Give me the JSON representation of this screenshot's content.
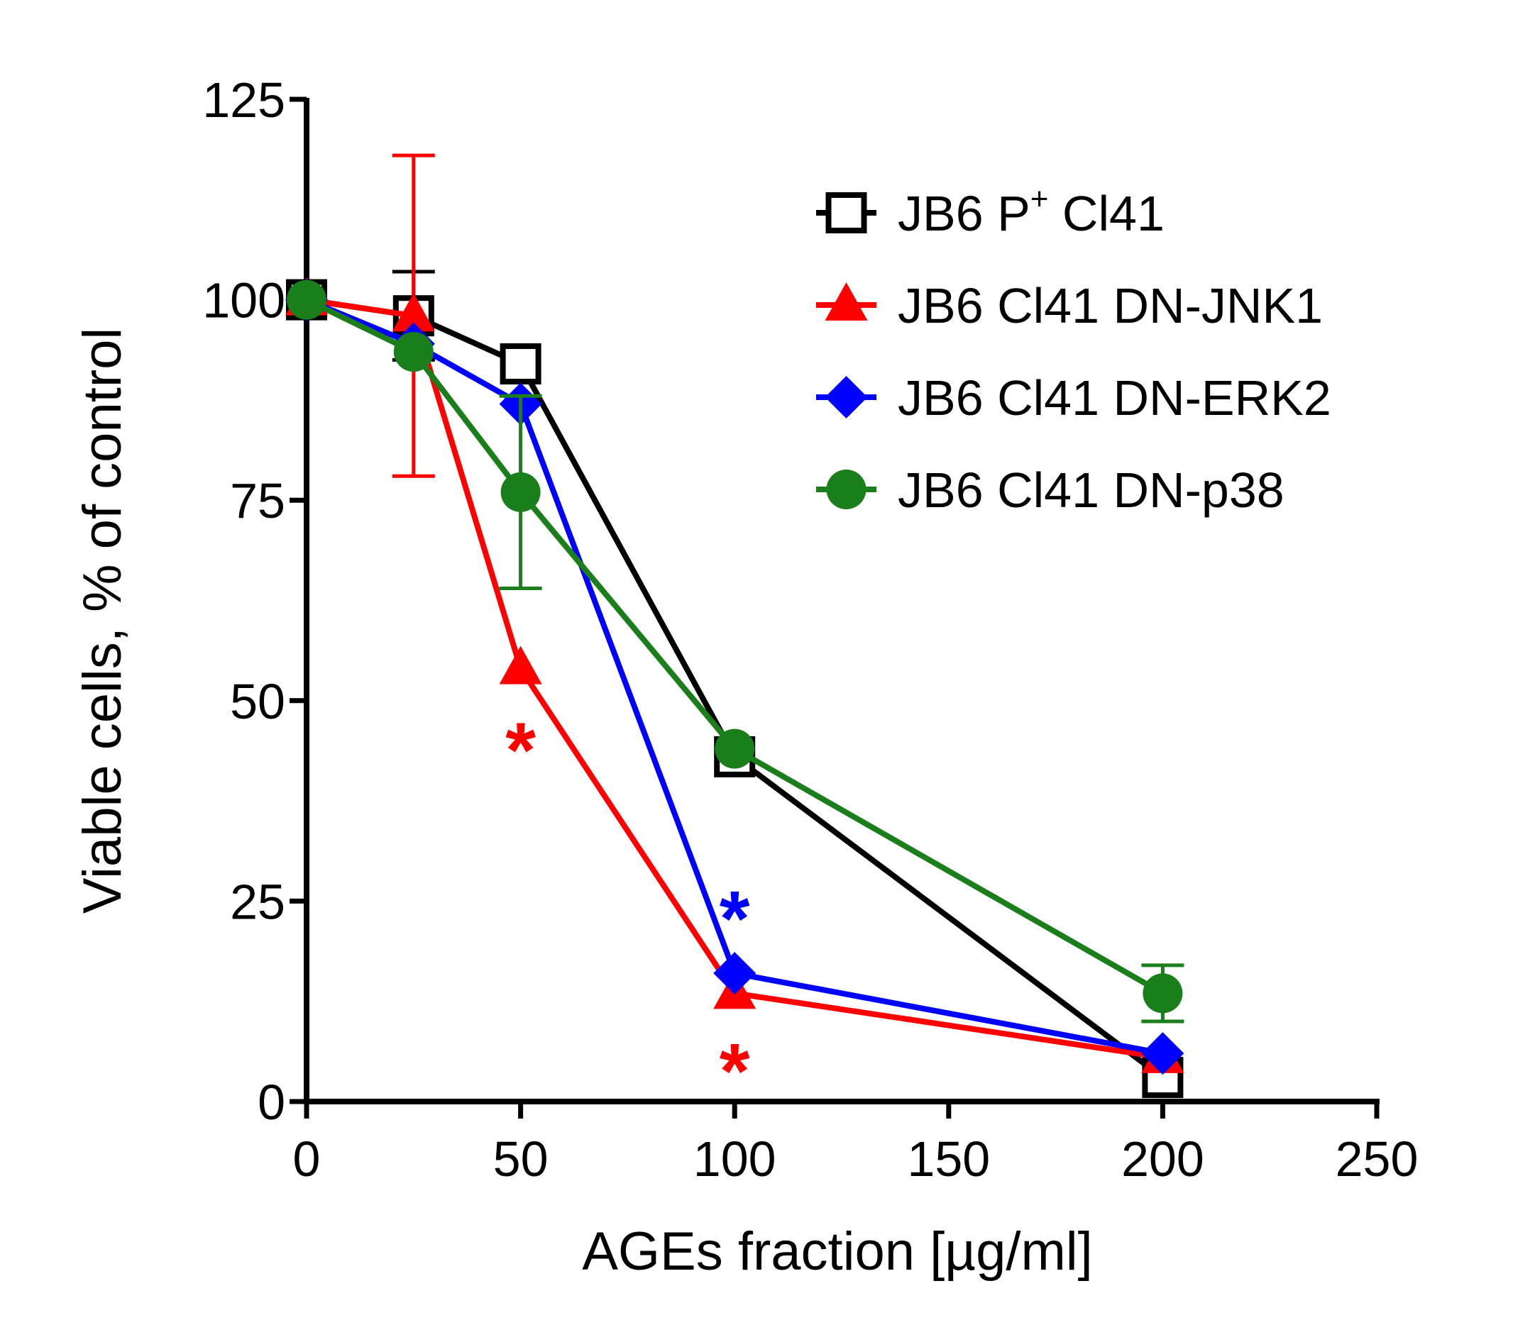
{
  "chart_data": {
    "type": "line",
    "title": "",
    "xlabel": "AGEs fraction [µg/ml]",
    "ylabel": "Viable cells, % of control",
    "xlim": [
      0,
      250
    ],
    "ylim": [
      0,
      125
    ],
    "xticks": [
      0,
      50,
      100,
      150,
      200,
      250
    ],
    "yticks": [
      0,
      25,
      50,
      75,
      100,
      125
    ],
    "xtick_labels": [
      "0",
      "50",
      "100",
      "150",
      "200",
      "250"
    ],
    "ytick_labels": [
      "0",
      "25",
      "50",
      "75",
      "100",
      "125"
    ],
    "grid": false,
    "legend_position": "top-right",
    "series": [
      {
        "name": "JB6 P+ Cl41",
        "legend_main": "JB6 P",
        "legend_sup": "+",
        "legend_tail": " Cl41",
        "color": "#000000",
        "marker": "open-square",
        "x": [
          0,
          25,
          50,
          100,
          200
        ],
        "y": [
          100,
          98,
          92,
          43,
          3
        ],
        "err": [
          0,
          5.5,
          0,
          0,
          0
        ]
      },
      {
        "name": "JB6 Cl41 DN-JNK1",
        "color": "#ff0000",
        "marker": "triangle",
        "x": [
          0,
          25,
          50,
          100,
          200
        ],
        "y": [
          100,
          98,
          54,
          13.5,
          5.5
        ],
        "err": [
          0,
          20,
          0,
          0,
          0
        ]
      },
      {
        "name": "JB6 Cl41 DN-ERK2",
        "color": "#0000ff",
        "marker": "diamond",
        "x": [
          0,
          25,
          50,
          100,
          200
        ],
        "y": [
          100,
          94.5,
          87,
          16,
          6
        ],
        "err": [
          0,
          0,
          0,
          0,
          0
        ]
      },
      {
        "name": "JB6 Cl41 DN-p38",
        "color": "#1a7f1a",
        "marker": "circle",
        "x": [
          0,
          25,
          50,
          100,
          200
        ],
        "y": [
          100,
          93.5,
          76,
          44,
          13.5
        ],
        "err": [
          0,
          0,
          12,
          0,
          3.5
        ]
      }
    ],
    "annotations": [
      {
        "text": "*",
        "x": 50,
        "y": 44,
        "color": "#ff0000"
      },
      {
        "text": "*",
        "x": 100,
        "y": 23,
        "color": "#0000ff"
      },
      {
        "text": "*",
        "x": 100,
        "y": 4,
        "color": "#ff0000"
      }
    ]
  }
}
